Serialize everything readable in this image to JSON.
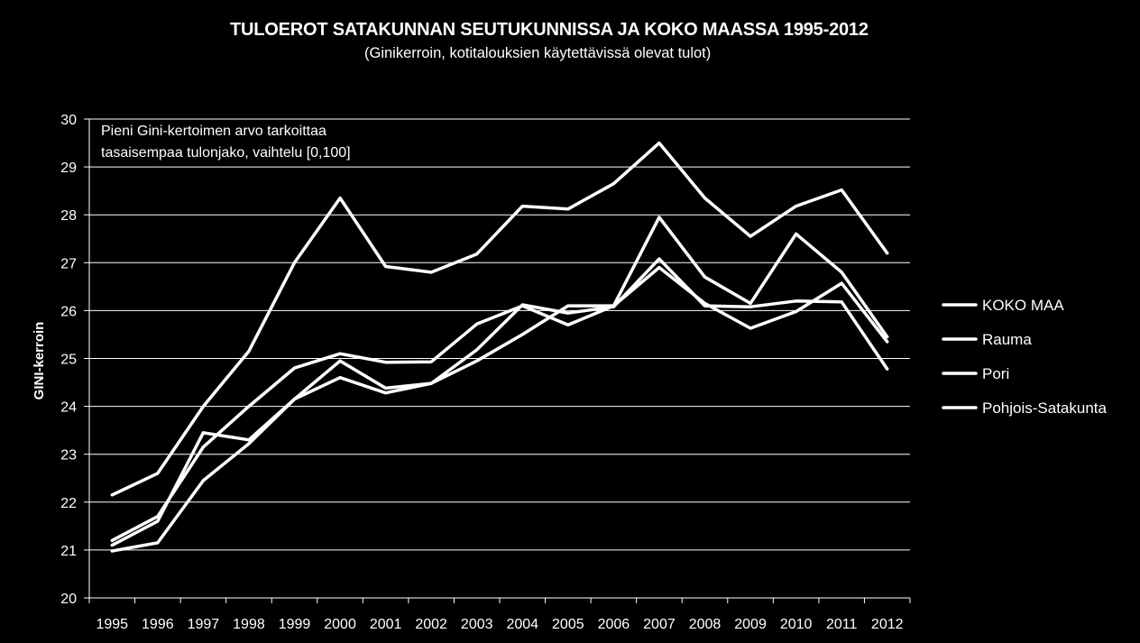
{
  "chart_data": {
    "type": "line",
    "title": "TULOEROT SATAKUNNAN SEUTUKUNNISSA JA KOKO MAASSA 1995-2012",
    "subtitle": "(Ginikerroin, kotitalouksien käytettävissä olevat tulot)",
    "ylabel": "GINI-kerroin",
    "xlabel": "",
    "annotation": "Pieni Gini-kertoimen arvo  tarkoittaa\ntasaisempaa tulonjako, vaihtelu [0,100]",
    "ylim": [
      20,
      30
    ],
    "yticks": [
      20,
      21,
      22,
      23,
      24,
      25,
      26,
      27,
      28,
      29,
      30
    ],
    "grid": true,
    "legend_position": "right",
    "categories": [
      "1995",
      "1996",
      "1997",
      "1998",
      "1999",
      "2000",
      "2001",
      "2002",
      "2003",
      "2004",
      "2005",
      "2006",
      "2007",
      "2008",
      "2009",
      "2010",
      "2011",
      "2012"
    ],
    "series": [
      {
        "name": "KOKO MAA",
        "values": [
          22.15,
          22.6,
          24.0,
          25.15,
          27.0,
          28.35,
          26.92,
          26.8,
          27.18,
          28.18,
          28.12,
          28.65,
          29.5,
          28.35,
          27.55,
          28.18,
          28.52,
          27.2
        ]
      },
      {
        "name": "Rauma",
        "values": [
          21.2,
          21.7,
          23.15,
          24.0,
          24.8,
          25.1,
          24.92,
          24.93,
          25.72,
          26.1,
          25.7,
          26.1,
          27.95,
          26.7,
          26.15,
          27.6,
          26.8,
          25.45
        ]
      },
      {
        "name": "Pori",
        "values": [
          20.98,
          21.15,
          22.45,
          23.22,
          24.15,
          24.6,
          24.28,
          24.48,
          24.95,
          25.5,
          26.1,
          26.1,
          26.9,
          26.15,
          25.63,
          25.98,
          26.57,
          25.35
        ]
      },
      {
        "name": "Pohjois-Satakunta",
        "values": [
          21.1,
          21.6,
          23.45,
          23.3,
          24.15,
          24.95,
          24.38,
          24.48,
          25.18,
          26.12,
          25.95,
          26.08,
          27.08,
          26.1,
          26.08,
          26.2,
          26.18,
          24.78
        ]
      }
    ],
    "colors": {
      "background": "#000000",
      "lines": "#ffffff",
      "axis": "#ffffff",
      "grid": "#ffffff"
    }
  }
}
